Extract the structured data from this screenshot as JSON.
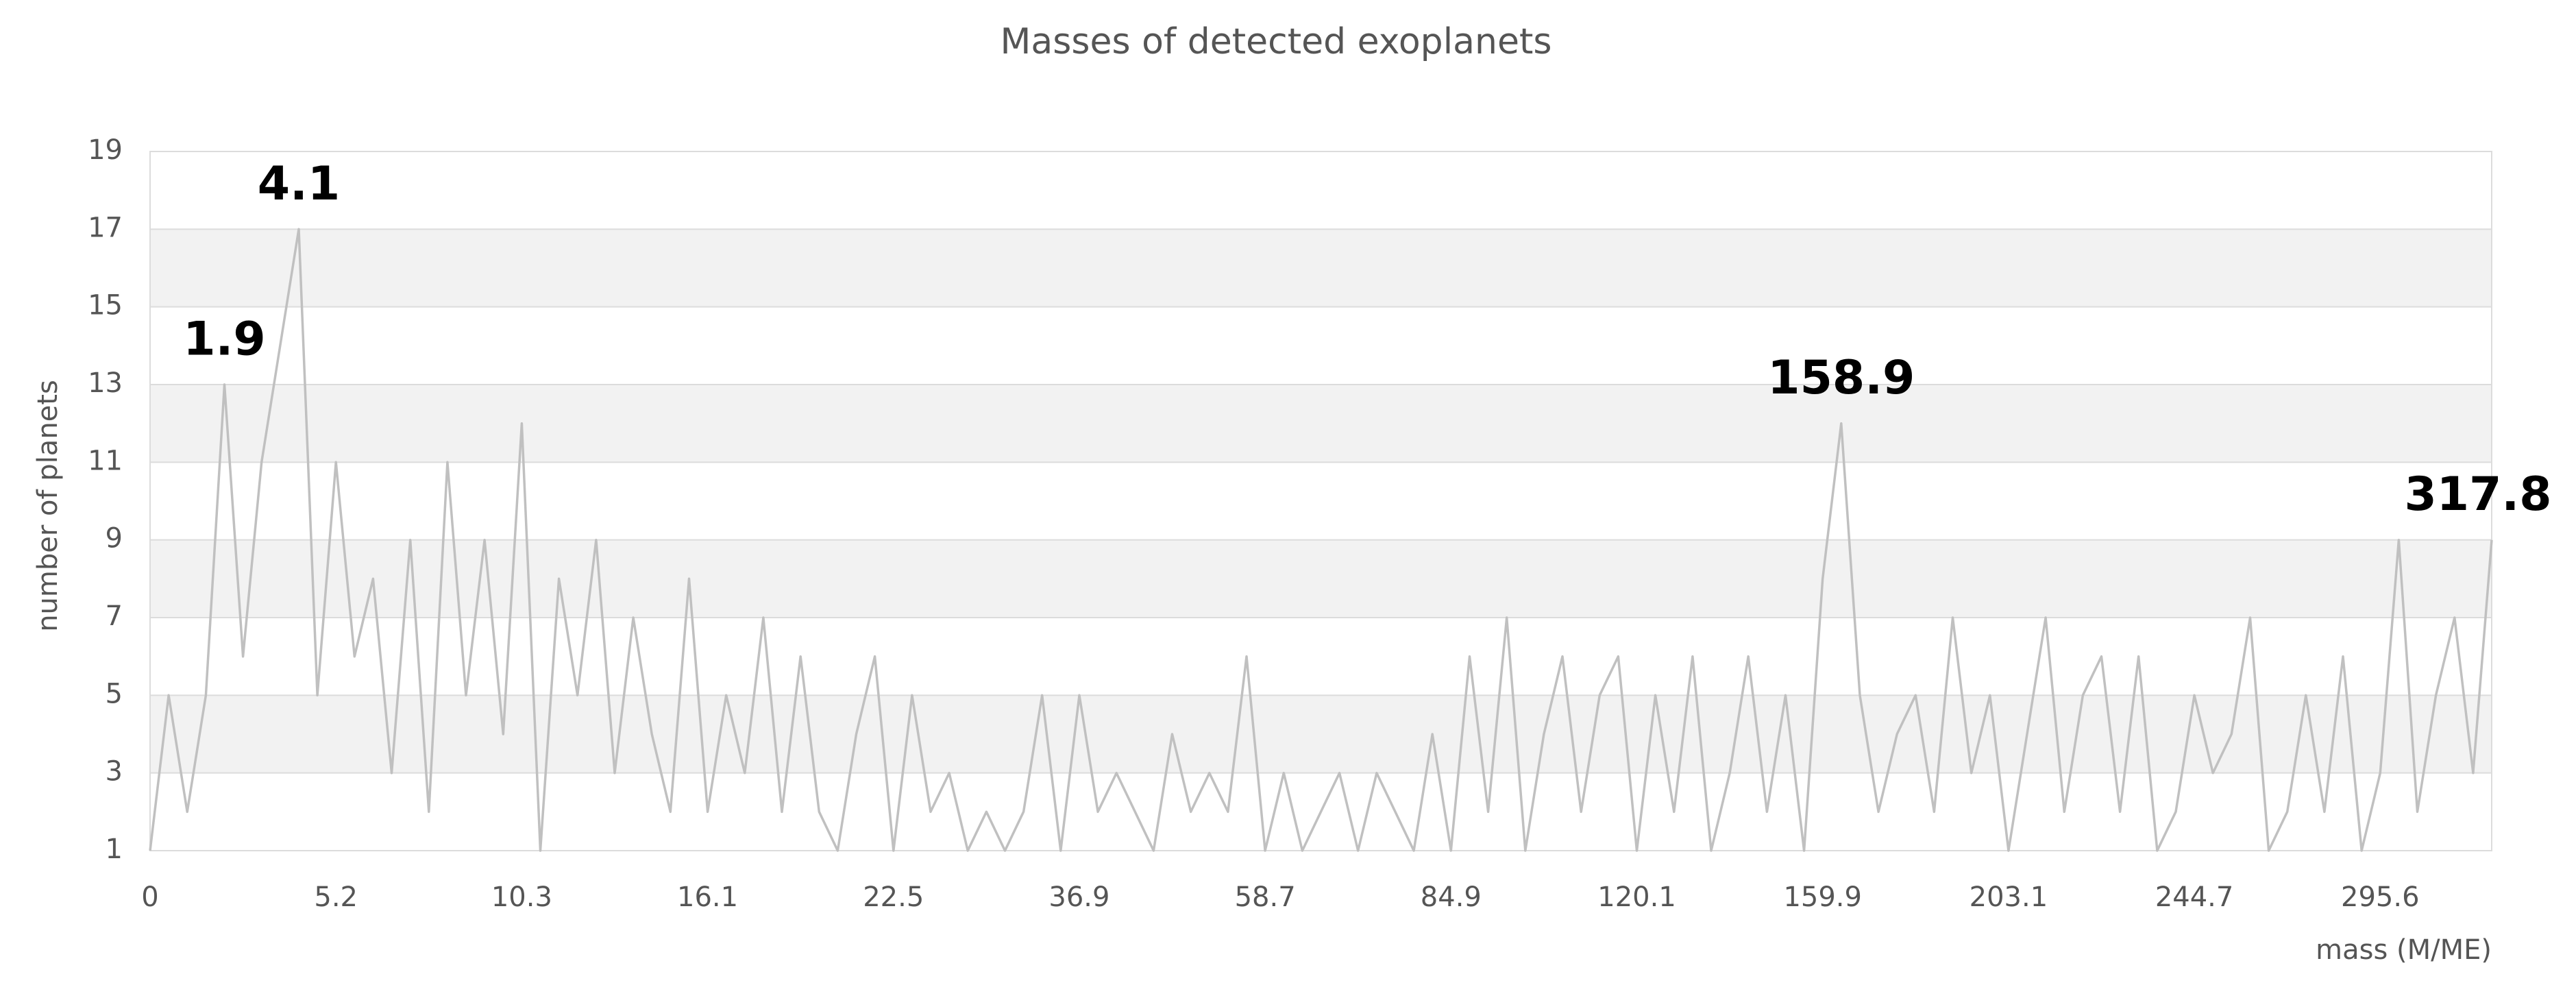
{
  "chart_data": {
    "type": "line",
    "title": "Masses of detected exoplanets",
    "x_label": "mass (M/ME)",
    "y_label": "number of planets",
    "categories": [
      "0",
      null,
      null,
      null,
      null,
      null,
      null,
      null,
      null,
      null,
      "5.2",
      null,
      null,
      null,
      null,
      null,
      null,
      null,
      null,
      null,
      "10.3",
      null,
      null,
      null,
      null,
      null,
      null,
      null,
      null,
      null,
      "16.1",
      null,
      null,
      null,
      null,
      null,
      null,
      null,
      null,
      null,
      "22.5",
      null,
      null,
      null,
      null,
      null,
      null,
      null,
      null,
      null,
      "36.9",
      null,
      null,
      null,
      null,
      null,
      null,
      null,
      null,
      null,
      "58.7",
      null,
      null,
      null,
      null,
      null,
      null,
      null,
      null,
      null,
      "84.9",
      null,
      null,
      null,
      null,
      null,
      null,
      null,
      null,
      null,
      "120.1",
      null,
      null,
      null,
      null,
      null,
      null,
      null,
      null,
      null,
      "159.9",
      null,
      null,
      null,
      null,
      null,
      null,
      null,
      null,
      null,
      "203.1",
      null,
      null,
      null,
      null,
      null,
      null,
      null,
      null,
      null,
      "244.7",
      null,
      null,
      null,
      null,
      null,
      null,
      null,
      null,
      null,
      "295.6",
      null,
      null,
      null,
      null,
      null,
      null
    ],
    "series": [
      {
        "name": "number of planets",
        "color": "#c0c0c0",
        "values": [
          1,
          5,
          2,
          5,
          13,
          6,
          11,
          14,
          17,
          5,
          11,
          6,
          8,
          3,
          9,
          2,
          11,
          5,
          9,
          4,
          12,
          1,
          8,
          5,
          9,
          3,
          7,
          4,
          2,
          8,
          2,
          5,
          3,
          7,
          2,
          6,
          2,
          1,
          4,
          6,
          1,
          5,
          2,
          3,
          1,
          2,
          1,
          2,
          5,
          1,
          5,
          2,
          3,
          2,
          1,
          4,
          2,
          3,
          2,
          6,
          1,
          3,
          1,
          2,
          3,
          1,
          3,
          2,
          1,
          4,
          1,
          6,
          2,
          7,
          1,
          4,
          6,
          2,
          5,
          6,
          1,
          5,
          2,
          6,
          1,
          3,
          6,
          2,
          5,
          1,
          8,
          12,
          5,
          2,
          4,
          5,
          2,
          7,
          3,
          5,
          1,
          4,
          7,
          2,
          5,
          6,
          2,
          6,
          1,
          2,
          5,
          3,
          4,
          7,
          1,
          2,
          5,
          2,
          6,
          1,
          3,
          9,
          2,
          5,
          7,
          3,
          9
        ]
      }
    ],
    "annotations": [
      "1.9",
      "4.1",
      "158.9",
      "317.8"
    ],
    "ylim": [
      1,
      19
    ],
    "yticks": [
      1,
      3,
      5,
      7,
      9,
      11,
      13,
      15,
      17,
      19
    ],
    "grid": "bands"
  }
}
